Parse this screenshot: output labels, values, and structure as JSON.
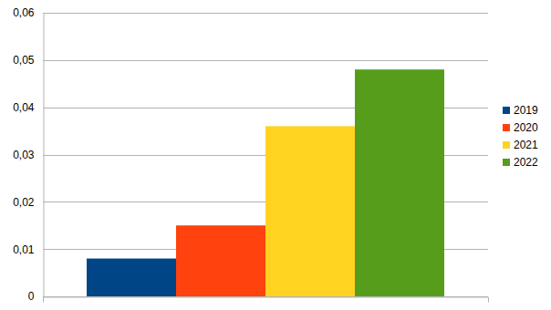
{
  "chart_data": {
    "type": "bar",
    "categories": [
      null
    ],
    "series": [
      {
        "name": "2019",
        "color": "#004586",
        "values": [
          0.008
        ]
      },
      {
        "name": "2020",
        "color": "#ff420e",
        "values": [
          0.015
        ]
      },
      {
        "name": "2021",
        "color": "#ffd320",
        "values": [
          0.036
        ]
      },
      {
        "name": "2022",
        "color": "#579d1c",
        "values": [
          0.048
        ]
      }
    ],
    "ylim": [
      0,
      0.06
    ],
    "yticks": [
      0,
      {
        "value": 0.01,
        "label": "0,01"
      },
      {
        "value": 0.02,
        "label": "0,02"
      },
      {
        "value": 0.03,
        "label": "0,03"
      },
      {
        "value": 0.04,
        "label": "0,04"
      },
      {
        "value": 0.05,
        "label": "0,05"
      },
      {
        "value": 0.06,
        "label": "0,06"
      }
    ],
    "grid": true,
    "legend": "right"
  }
}
